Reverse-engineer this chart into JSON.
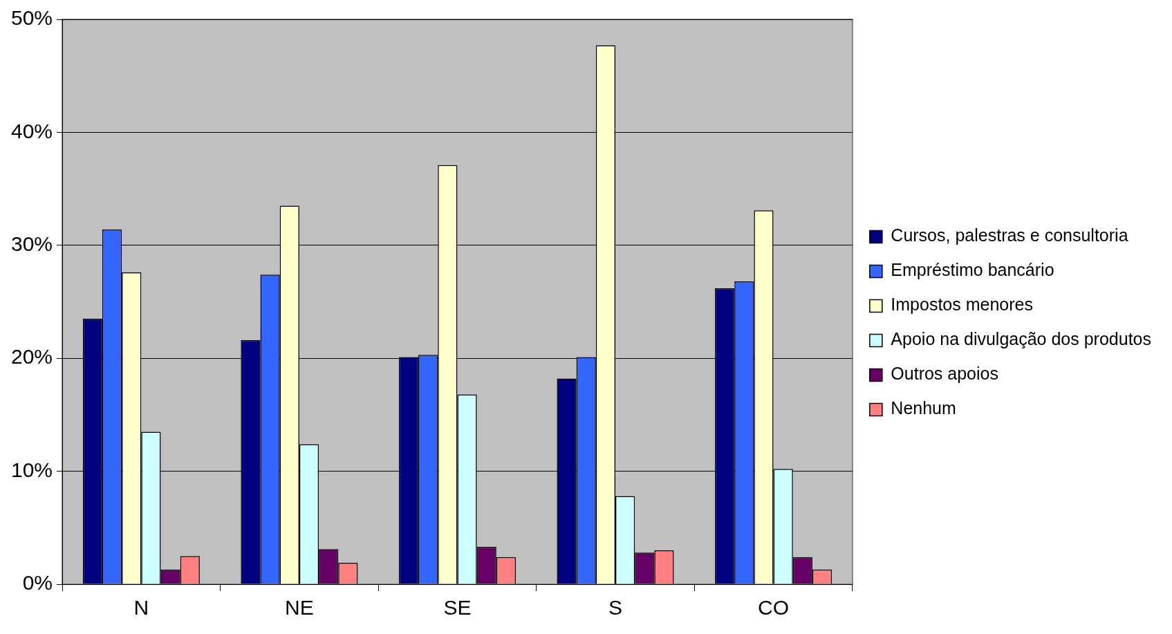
{
  "chart_data": {
    "type": "bar",
    "categories": [
      "N",
      "NE",
      "SE",
      "S",
      "CO"
    ],
    "series": [
      {
        "name": "Cursos, palestras e consultoria",
        "color": "#000080",
        "values": [
          23.5,
          21.6,
          20.1,
          18.2,
          26.2
        ]
      },
      {
        "name": "Empréstimo bancário",
        "color": "#3366ff",
        "values": [
          31.4,
          27.4,
          20.3,
          20.1,
          26.8
        ]
      },
      {
        "name": "Impostos menores",
        "color": "#ffffcc",
        "values": [
          27.6,
          33.5,
          37.1,
          47.7,
          33.1
        ]
      },
      {
        "name": "Apoio na divulgação dos produtos",
        "color": "#ccffff",
        "values": [
          13.5,
          12.4,
          16.8,
          7.8,
          10.2
        ]
      },
      {
        "name": "Outros apoios",
        "color": "#660066",
        "values": [
          1.3,
          3.1,
          3.3,
          2.8,
          2.4
        ]
      },
      {
        "name": "Nenhum",
        "color": "#ff8080",
        "values": [
          2.5,
          1.9,
          2.4,
          3.0,
          1.3
        ]
      }
    ],
    "ylim": [
      0,
      50
    ],
    "yticks": [
      {
        "value": 0,
        "label": "0%"
      },
      {
        "value": 10,
        "label": "10%"
      },
      {
        "value": 20,
        "label": "20%"
      },
      {
        "value": 30,
        "label": "30%"
      },
      {
        "value": 40,
        "label": "40%"
      },
      {
        "value": 50,
        "label": "50%"
      }
    ],
    "grid": "y",
    "legend": "right"
  }
}
